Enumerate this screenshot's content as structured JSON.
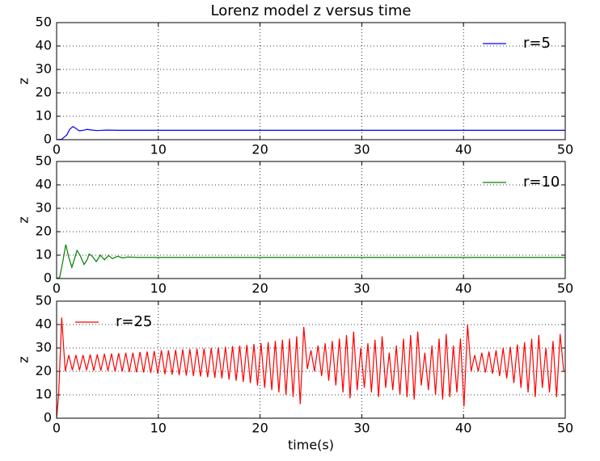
{
  "chart_data": [
    {
      "type": "line",
      "title": "Lorenz model  z versus time",
      "ylabel": "z",
      "xlim": [
        0,
        50
      ],
      "xticks": [
        0,
        10,
        20,
        30,
        40,
        50
      ],
      "ylim": [
        0,
        50
      ],
      "yticks": [
        0,
        10,
        20,
        30,
        40,
        50
      ],
      "grid": true,
      "legend": "upper right",
      "x": [
        0,
        0.5,
        1,
        1.3,
        1.6,
        1.9,
        2.2,
        2.6,
        3.0,
        3.5,
        4,
        5,
        6,
        50
      ],
      "series": [
        {
          "name": "r=5",
          "color": "#0000ff",
          "values": [
            0,
            0.2,
            2,
            4.5,
            5.6,
            4.8,
            3.8,
            4,
            4.4,
            4.1,
            3.9,
            4.1,
            4,
            4
          ]
        }
      ]
    },
    {
      "type": "line",
      "ylabel": "z",
      "xlim": [
        0,
        50
      ],
      "xticks": [
        0,
        10,
        20,
        30,
        40,
        50
      ],
      "ylim": [
        0,
        50
      ],
      "yticks": [
        0,
        10,
        20,
        30,
        40,
        50
      ],
      "grid": true,
      "legend": "upper right",
      "x": [
        0,
        0.3,
        0.6,
        0.9,
        1.2,
        1.5,
        1.8,
        2.0,
        2.3,
        2.7,
        3.0,
        3.2,
        3.5,
        3.9,
        4.3,
        4.7,
        5.1,
        5.5,
        6.0,
        6.5,
        7,
        8,
        50
      ],
      "series": [
        {
          "name": "r=10",
          "color": "#008000",
          "values": [
            0,
            0.5,
            7,
            14.5,
            9,
            4.8,
            9,
            12,
            10,
            6,
            8,
            10.5,
            9.5,
            7.2,
            10,
            8,
            9.8,
            8.5,
            9.5,
            8.8,
            9.2,
            9,
            9
          ]
        }
      ]
    },
    {
      "type": "line",
      "xlabel": "time(s)",
      "ylabel": "z",
      "xlim": [
        0,
        50
      ],
      "xticks": [
        0,
        10,
        20,
        30,
        40,
        50
      ],
      "ylim": [
        0,
        50
      ],
      "yticks": [
        0,
        10,
        20,
        30,
        40,
        50
      ],
      "grid": true,
      "legend": "upper left",
      "x": [
        0,
        0.2,
        0.5,
        0.85,
        1.2,
        1.55,
        1.9,
        2.25,
        2.6,
        2.95,
        3.3,
        3.65,
        4,
        4.35,
        4.7,
        5.05,
        5.4,
        5.75,
        6.1,
        6.45,
        6.8,
        7.15,
        7.5,
        7.85,
        8.2,
        8.55,
        8.9,
        9.25,
        9.6,
        9.95,
        10.3,
        10.65,
        11,
        11.35,
        11.7,
        12.05,
        12.4,
        12.75,
        13.1,
        13.45,
        13.8,
        14.15,
        14.5,
        14.85,
        15.2,
        15.55,
        15.9,
        16.25,
        16.6,
        16.95,
        17.3,
        17.65,
        18,
        18.35,
        18.7,
        19.05,
        19.4,
        19.75,
        20.1,
        20.45,
        20.8,
        21.15,
        21.5,
        21.85,
        22.2,
        22.55,
        22.9,
        23.25,
        23.6,
        23.95,
        24.3,
        24.65,
        25,
        25.35,
        25.7,
        26.05,
        26.4,
        26.75,
        27.1,
        27.45,
        27.8,
        28.15,
        28.5,
        28.85,
        29.2,
        29.55,
        29.9,
        30.25,
        30.6,
        30.95,
        31.3,
        31.65,
        32,
        32.35,
        32.7,
        33.05,
        33.4,
        33.75,
        34.1,
        34.45,
        34.8,
        35.15,
        35.5,
        35.85,
        36.2,
        36.55,
        36.9,
        37.25,
        37.6,
        37.95,
        38.3,
        38.65,
        39,
        39.35,
        39.7,
        40.05,
        40.4,
        40.75,
        41.1,
        41.45,
        41.8,
        42.15,
        42.5,
        42.85,
        43.2,
        43.55,
        43.9,
        44.25,
        44.6,
        44.95,
        45.3,
        45.65,
        46,
        46.35,
        46.7,
        47.05,
        47.4,
        47.75,
        48.1,
        48.45,
        48.8,
        49.15,
        49.5,
        49.85
      ],
      "series": [
        {
          "name": "r=25",
          "color": "#ff0000",
          "values": [
            0,
            10,
            43,
            20,
            27,
            20.5,
            27,
            20.5,
            27,
            20.5,
            27.2,
            20.3,
            27.3,
            20.3,
            27.5,
            20.2,
            27.6,
            20,
            27.8,
            20,
            28,
            19.8,
            28,
            19.6,
            28.3,
            19.5,
            28.5,
            19.3,
            28.7,
            19,
            29,
            18.8,
            29,
            18.6,
            29.2,
            18.4,
            29.4,
            18.2,
            29.5,
            18,
            29.7,
            17.8,
            29.8,
            17.5,
            30,
            17.2,
            30.2,
            17,
            30.5,
            16.5,
            30.8,
            16,
            31,
            15.5,
            31.3,
            15,
            31.7,
            14,
            32,
            13,
            32.5,
            12,
            33,
            11,
            33.5,
            10,
            34,
            9,
            35,
            6,
            39,
            21,
            29,
            20,
            31,
            18,
            32,
            16,
            33,
            14,
            34,
            11,
            35.5,
            8.5,
            37,
            12,
            30,
            13,
            32,
            11,
            33.5,
            9,
            35,
            13,
            28,
            12,
            31,
            10,
            34,
            9,
            35.5,
            8,
            37,
            14,
            28,
            12,
            31,
            10,
            34,
            8,
            36,
            9,
            31,
            11,
            34,
            5,
            40,
            20,
            27,
            20,
            28,
            19.5,
            28.5,
            19,
            29,
            18,
            30,
            17,
            30.5,
            15,
            31.5,
            13,
            32.5,
            11,
            34,
            9,
            35.5,
            13,
            30,
            11,
            33,
            9,
            36,
            20
          ]
        }
      ]
    }
  ]
}
